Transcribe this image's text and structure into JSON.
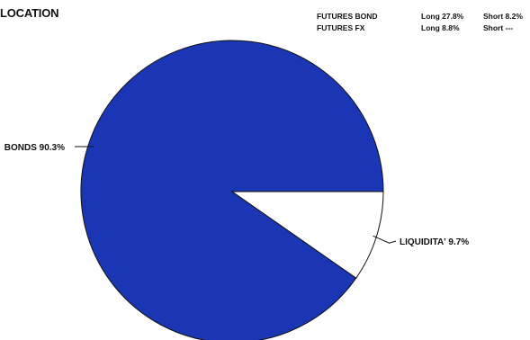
{
  "title": "LOCATION",
  "futures": [
    {
      "name": "FUTURES BOND",
      "long": "Long 27.8%",
      "short": "Short 8.2%"
    },
    {
      "name": "FUTURES FX",
      "long": "Long 8.8%",
      "short": "Short ---"
    }
  ],
  "chart_data": {
    "type": "pie",
    "slices": [
      {
        "label": "BONDS 90.3%",
        "value": 90.3,
        "color": "#1a36b4"
      },
      {
        "label": "LIQUIDITA' 9.7%",
        "value": 9.7,
        "color": "#ffffff"
      }
    ],
    "legend": "none",
    "start_angle_deg": 0,
    "direction": "counterclockwise"
  }
}
